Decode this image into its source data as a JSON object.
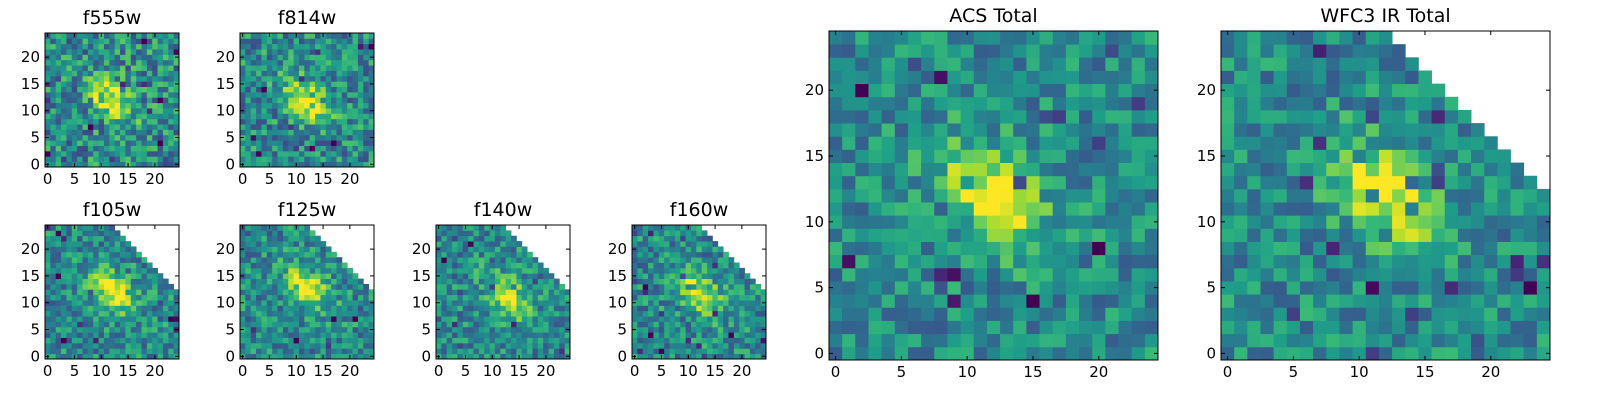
{
  "chart_data": [
    {
      "type": "heatmap",
      "title": "f555w",
      "xlim": [
        0,
        24
      ],
      "ylim": [
        0,
        24
      ],
      "xticks": [
        "0",
        "5",
        "10",
        "15",
        "20"
      ],
      "yticks": [
        "0",
        "5",
        "10",
        "15",
        "20"
      ],
      "colormap": "viridis",
      "source_shape": "full",
      "peak": [
        12,
        12
      ],
      "noise": 0.55
    },
    {
      "type": "heatmap",
      "title": "f814w",
      "xlim": [
        0,
        24
      ],
      "ylim": [
        0,
        24
      ],
      "xticks": [
        "0",
        "5",
        "10",
        "15",
        "20"
      ],
      "yticks": [
        "0",
        "5",
        "10",
        "15",
        "20"
      ],
      "colormap": "viridis",
      "source_shape": "full",
      "peak": [
        12,
        12
      ],
      "noise": 0.5
    },
    {
      "type": "heatmap",
      "title": "f105w",
      "xlim": [
        0,
        24
      ],
      "ylim": [
        0,
        24
      ],
      "xticks": [
        "0",
        "5",
        "10",
        "15",
        "20"
      ],
      "yticks": [
        "0",
        "5",
        "10",
        "15",
        "20"
      ],
      "colormap": "viridis",
      "source_shape": "clipped-top-right",
      "peak": [
        12,
        12
      ],
      "noise": 0.45
    },
    {
      "type": "heatmap",
      "title": "f125w",
      "xlim": [
        0,
        24
      ],
      "ylim": [
        0,
        24
      ],
      "xticks": [
        "0",
        "5",
        "10",
        "15",
        "20"
      ],
      "yticks": [
        "0",
        "5",
        "10",
        "15",
        "20"
      ],
      "colormap": "viridis",
      "source_shape": "clipped-top-right",
      "peak": [
        12,
        13
      ],
      "noise": 0.45
    },
    {
      "type": "heatmap",
      "title": "f140w",
      "xlim": [
        0,
        24
      ],
      "ylim": [
        0,
        24
      ],
      "xticks": [
        "0",
        "5",
        "10",
        "15",
        "20"
      ],
      "yticks": [
        "0",
        "5",
        "10",
        "15",
        "20"
      ],
      "colormap": "viridis",
      "source_shape": "clipped-top-right",
      "peak": [
        13,
        11
      ],
      "noise": 0.45
    },
    {
      "type": "heatmap",
      "title": "f160w",
      "xlim": [
        0,
        24
      ],
      "ylim": [
        0,
        24
      ],
      "xticks": [
        "0",
        "5",
        "10",
        "15",
        "20"
      ],
      "yticks": [
        "0",
        "5",
        "10",
        "15",
        "20"
      ],
      "colormap": "viridis",
      "source_shape": "clipped-top-right",
      "peak": [
        12,
        12
      ],
      "noise": 0.45
    },
    {
      "type": "heatmap",
      "title": "ACS Total",
      "xlim": [
        0,
        24
      ],
      "ylim": [
        0,
        24
      ],
      "xticks": [
        "0",
        "5",
        "10",
        "15",
        "20"
      ],
      "yticks": [
        "0",
        "5",
        "10",
        "15",
        "20"
      ],
      "colormap": "viridis",
      "source_shape": "full",
      "peak": [
        12,
        12
      ],
      "noise": 0.4
    },
    {
      "type": "heatmap",
      "title": "WFC3 IR Total",
      "xlim": [
        0,
        24
      ],
      "ylim": [
        0,
        24
      ],
      "xticks": [
        "0",
        "5",
        "10",
        "15",
        "20"
      ],
      "yticks": [
        "0",
        "5",
        "10",
        "15",
        "20"
      ],
      "colormap": "viridis",
      "source_shape": "clipped-top-right",
      "peak": [
        12,
        12
      ],
      "noise": 0.4
    }
  ]
}
